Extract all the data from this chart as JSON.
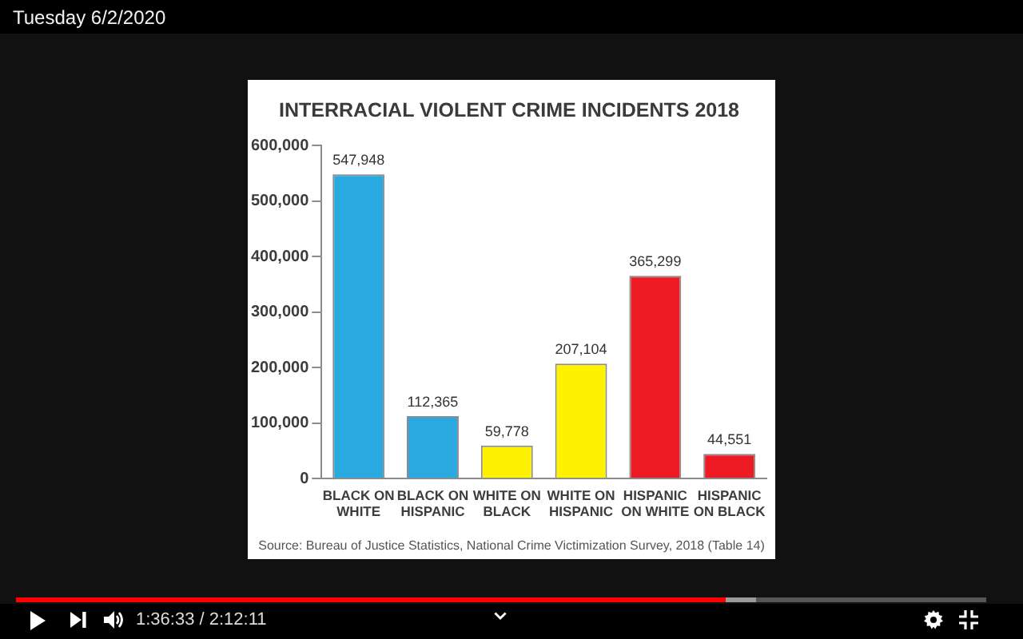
{
  "chart_data": {
    "type": "bar",
    "title": "INTERRACIAL VIOLENT CRIME INCIDENTS 2018",
    "categories": [
      "BLACK ON WHITE",
      "BLACK ON HISPANIC",
      "WHITE ON BLACK",
      "WHITE ON HISPANIC",
      "HISPANIC ON WHITE",
      "HISPANIC ON BLACK"
    ],
    "values": [
      547948,
      112365,
      59778,
      207104,
      365299,
      44551
    ],
    "value_labels": [
      "547,948",
      "112,365",
      "59,778",
      "207,104",
      "365,299",
      "44,551"
    ],
    "colors": [
      "#29abe2",
      "#29abe2",
      "#fff200",
      "#fff200",
      "#ed1c24",
      "#ed1c24"
    ],
    "ylim": [
      0,
      600000
    ],
    "yticks": [
      0,
      {
        "value": 100000,
        "label": "100,000"
      },
      {
        "value": 200000,
        "label": "200,000"
      },
      {
        "value": 300000,
        "label": "300,000"
      },
      {
        "value": 400000,
        "label": "400,000"
      },
      {
        "value": 500000,
        "label": "500,000"
      },
      {
        "value": 600000,
        "label": "600,000"
      }
    ],
    "grid": false,
    "legend": false,
    "annotations": [
      "Source: Bureau of Justice Statistics, National Crime Victimization Survey, 2018 (Table 14)",
      "Tuesday 6/2/2020",
      "1:36:33 / 2:12:11"
    ]
  }
}
